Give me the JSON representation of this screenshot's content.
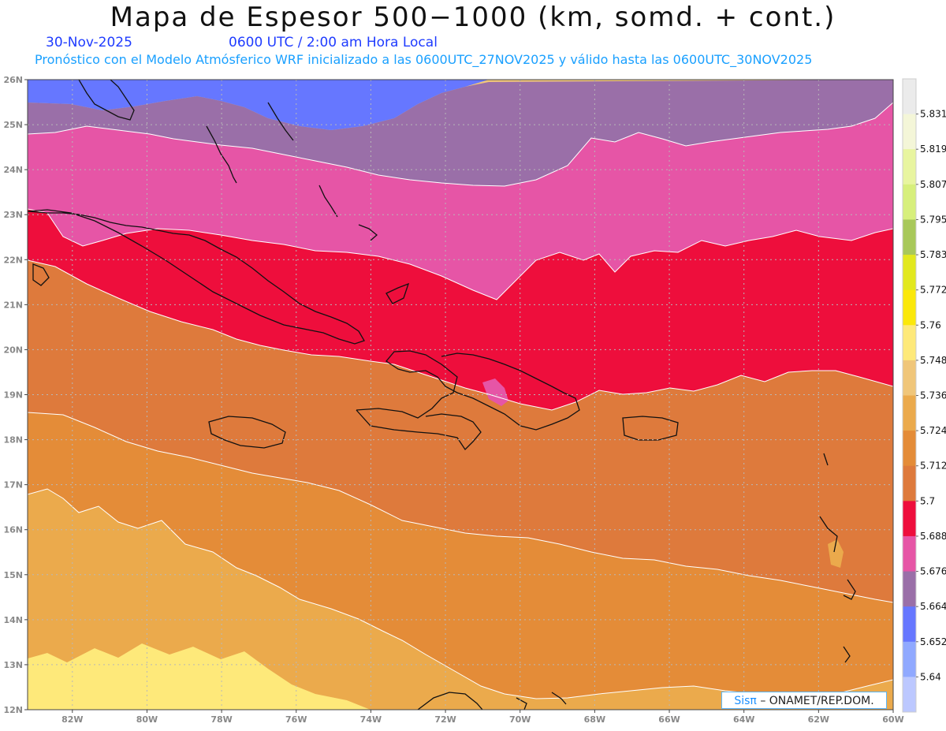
{
  "header": {
    "title": "Mapa de Espesor 500−1000 (km, somd. + cont.)",
    "date": "30-Nov-2025",
    "time": "0600 UTC / 2:00 am Hora Local",
    "forecast_line": "Pronóstico con el Modelo Atmósferico WRF inicializado a las 0600UTC_27NOV2025 y válido hasta las  0600UTC_30NOV2025"
  },
  "map": {
    "lat_labels": [
      "26N",
      "25N",
      "24N",
      "23N",
      "22N",
      "21N",
      "20N",
      "19N",
      "18N",
      "17N",
      "16N",
      "15N",
      "14N",
      "13N",
      "12N"
    ],
    "lon_labels": [
      "82W",
      "80W",
      "78W",
      "76W",
      "74W",
      "72W",
      "70W",
      "68W",
      "66W",
      "64W",
      "62W",
      "60W"
    ],
    "lat_range": [
      12,
      26
    ],
    "lon_range": [
      -83.2,
      -60
    ],
    "contour_colors": {
      "c5664": "#6677ff",
      "c5676": "#9a6fa8",
      "c5688": "#e655a6",
      "c5700": "#ee0e3c",
      "c5712": "#de7a3c",
      "c5724": "#e48c38",
      "c5736": "#ebaa4c",
      "c5748": "#f0c67a",
      "c5760": "#fee97a"
    },
    "gridlines": true
  },
  "colorbar": {
    "labels": [
      "5.831",
      "5.819",
      "5.807",
      "5.795",
      "5.783",
      "5.772",
      "5.76",
      "5.748",
      "5.736",
      "5.724",
      "5.712",
      "5.7",
      "5.688",
      "5.676",
      "5.664",
      "5.652",
      "5.64"
    ],
    "colors": [
      "#ebebeb",
      "#f4f6d8",
      "#e8f5a0",
      "#d7ef7c",
      "#a8c85a",
      "#e2e81e",
      "#fbe80a",
      "#fee97a",
      "#f0c67a",
      "#ebaa4c",
      "#e48c38",
      "#de7a3c",
      "#ee0e3c",
      "#e655a6",
      "#9a6fa8",
      "#6677ff",
      "#90a9ff",
      "#bcc8ff"
    ]
  },
  "watermark": {
    "brand": "Sisπ",
    "text": "–  ONAMET/REP.DOM."
  }
}
